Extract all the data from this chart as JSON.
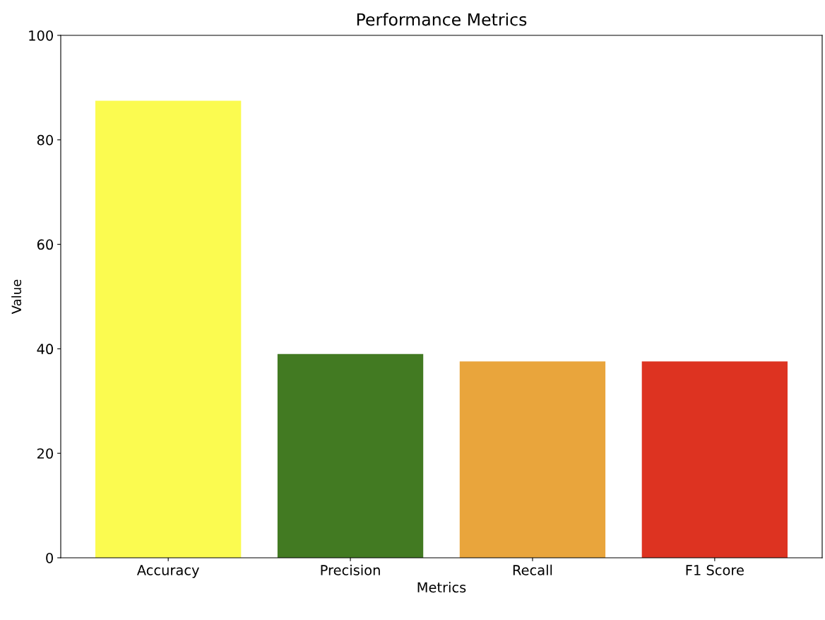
{
  "chart_data": {
    "type": "bar",
    "title": "Performance Metrics",
    "xlabel": "Metrics",
    "ylabel": "Value",
    "categories": [
      "Accuracy",
      "Precision",
      "Recall",
      "F1 Score"
    ],
    "values": [
      87.5,
      39.0,
      37.6,
      37.6
    ],
    "colors": [
      "#fbfb50",
      "#427a22",
      "#e9a53c",
      "#dd3321"
    ],
    "ylim": [
      0,
      100
    ],
    "yticks": [
      0,
      20,
      40,
      60,
      80,
      100
    ],
    "grid": false
  }
}
